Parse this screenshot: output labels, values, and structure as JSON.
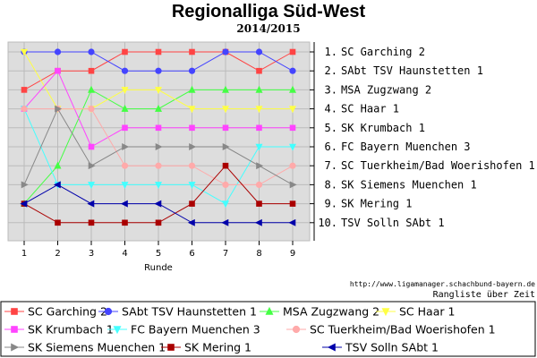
{
  "chart_data": {
    "type": "line",
    "title": "Regionalliga Süd-West",
    "subtitle": "2014/2015",
    "xlabel": "Runde",
    "x": [
      1,
      2,
      3,
      4,
      5,
      6,
      7,
      8,
      9
    ],
    "ylim": [
      1,
      10
    ],
    "y_inverted": true,
    "grid": true,
    "ranks": [
      "1.",
      "2.",
      "3.",
      "4.",
      "5.",
      "6.",
      "7.",
      "8.",
      "9.",
      "10."
    ],
    "rank_labels": [
      "SC Garching 2",
      "SAbt TSV Haunstetten 1",
      "MSA Zugzwang 2",
      "SC Haar 1",
      "SK Krumbach 1",
      "FC Bayern Muenchen 3",
      "SC Tuerkheim/Bad Woerishofen 1",
      "SK Siemens Muenchen 1",
      "SK Mering 1",
      "TSV Solln SAbt 1"
    ],
    "series": [
      {
        "name": "SC Garching 2",
        "color": "#ff4444",
        "marker": "square",
        "values": [
          3,
          2,
          2,
          1,
          1,
          1,
          1,
          2,
          1
        ]
      },
      {
        "name": "SAbt TSV Haunstetten 1",
        "color": "#4444ff",
        "marker": "circle",
        "values": [
          1,
          1,
          1,
          2,
          2,
          2,
          1,
          1,
          2
        ]
      },
      {
        "name": "MSA Zugzwang 2",
        "color": "#44ff44",
        "marker": "triangle-up",
        "values": [
          9,
          7,
          3,
          4,
          4,
          3,
          3,
          3,
          3
        ]
      },
      {
        "name": "SC Haar 1",
        "color": "#ffff44",
        "marker": "triangle-down",
        "values": [
          1,
          4,
          4,
          3,
          3,
          4,
          4,
          4,
          4
        ]
      },
      {
        "name": "SK Krumbach 1",
        "color": "#ff44ff",
        "marker": "square",
        "values": [
          4,
          2,
          6,
          5,
          5,
          5,
          5,
          5,
          5
        ]
      },
      {
        "name": "FC Bayern Muenchen 3",
        "color": "#44ffff",
        "marker": "triangle-down",
        "values": [
          4,
          8,
          8,
          8,
          8,
          8,
          9,
          6,
          6
        ]
      },
      {
        "name": "SC Tuerkheim/Bad Woerishofen 1",
        "color": "#ffaaaa",
        "marker": "circle",
        "values": [
          4,
          4,
          4,
          7,
          7,
          7,
          8,
          8,
          7
        ]
      },
      {
        "name": "SK Siemens Muenchen 1",
        "color": "#888888",
        "marker": "triangle-right",
        "values": [
          8,
          4,
          7,
          6,
          6,
          6,
          6,
          7,
          8
        ]
      },
      {
        "name": "SK Mering 1",
        "color": "#aa0000",
        "marker": "square",
        "values": [
          9,
          10,
          10,
          10,
          10,
          9,
          7,
          9,
          9
        ]
      },
      {
        "name": "TSV Solln SAbt 1",
        "color": "#0000aa",
        "marker": "triangle-left",
        "values": [
          9,
          8,
          9,
          9,
          9,
          10,
          10,
          10,
          10
        ]
      }
    ]
  },
  "footer": {
    "url": "http://www.ligamanager.schachbund-bayern.de",
    "caption": "Rangliste über Zeit"
  }
}
